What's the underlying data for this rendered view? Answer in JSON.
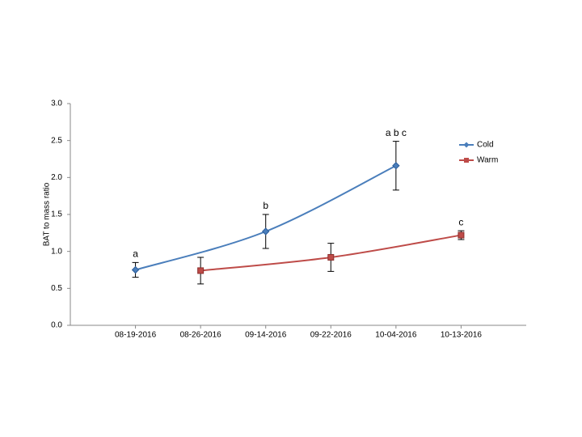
{
  "chart_data": {
    "type": "line",
    "y_label": "BAT to mass ratio",
    "categories": [
      "08-19-2016",
      "08-26-2016",
      "09-14-2016",
      "09-22-2016",
      "10-04-2016",
      "10-13-2016"
    ],
    "series": [
      {
        "name": "Cold",
        "color": "#4a7ebb",
        "marker": "diamond",
        "x": [
          "08-19-2016",
          "09-14-2016",
          "10-04-2016"
        ],
        "values": [
          0.75,
          1.27,
          2.16
        ],
        "errors": [
          0.1,
          0.23,
          0.33
        ],
        "labels": [
          "a",
          "b",
          "a b c"
        ]
      },
      {
        "name": "Warm",
        "color": "#be4b48",
        "marker": "square",
        "x": [
          "08-26-2016",
          "09-22-2016",
          "10-13-2016"
        ],
        "values": [
          0.74,
          0.92,
          1.22
        ],
        "errors": [
          0.18,
          0.19,
          0.06
        ],
        "labels": [
          null,
          null,
          "c"
        ]
      }
    ],
    "ylim": [
      0,
      3
    ],
    "yticks": [
      {
        "value": 0,
        "label": "0.0"
      },
      {
        "value": 0.5,
        "label": "0.5"
      },
      {
        "value": 1,
        "label": "1.0"
      },
      {
        "value": 1.5,
        "label": "1.5"
      },
      {
        "value": 2,
        "label": "2.0"
      },
      {
        "value": 2.5,
        "label": "2.5"
      },
      {
        "value": 3,
        "label": "3.0"
      }
    ],
    "grid": false,
    "legend": "right",
    "smooth": true
  }
}
